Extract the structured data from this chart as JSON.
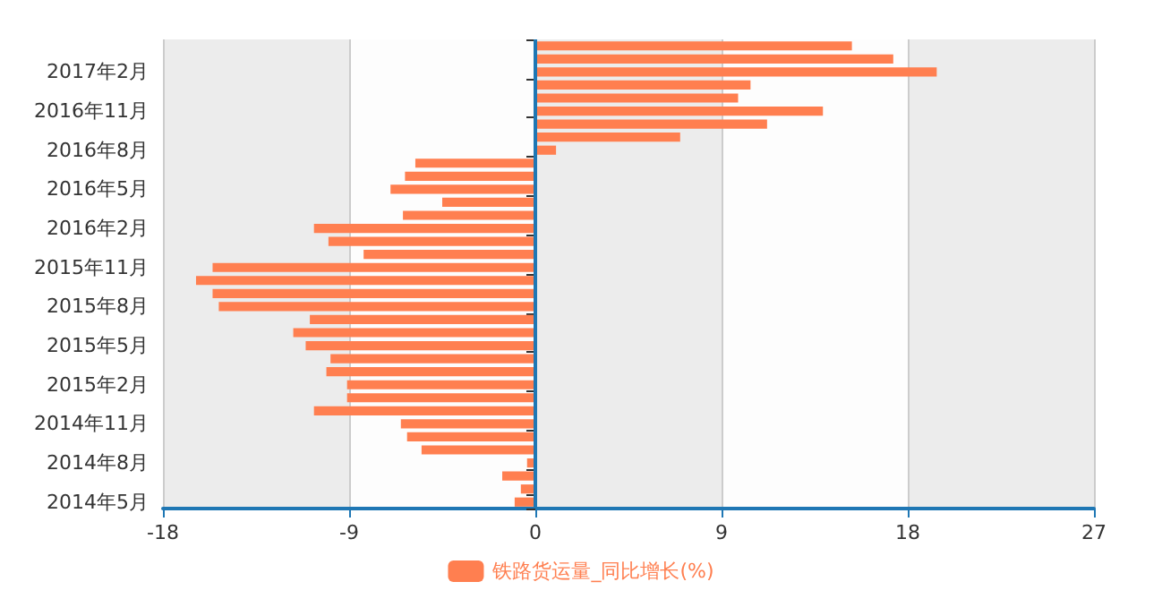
{
  "chart_data": {
    "type": "bar",
    "orientation": "horizontal",
    "categories": [
      null,
      null,
      "2017年2月",
      null,
      null,
      "2016年11月",
      null,
      null,
      "2016年8月",
      null,
      null,
      "2016年5月",
      null,
      null,
      "2016年2月",
      null,
      null,
      "2015年11月",
      null,
      null,
      "2015年8月",
      null,
      null,
      "2015年5月",
      null,
      null,
      "2015年2月",
      null,
      null,
      "2014年11月",
      null,
      null,
      "2014年8月",
      null,
      null,
      "2014年5月"
    ],
    "series": [
      {
        "name": "铁路货运量_同比增长(%)",
        "color": "#ff7f50",
        "values": [
          15.3,
          17.3,
          19.4,
          10.4,
          9.8,
          13.9,
          11.2,
          7.0,
          1.0,
          -5.8,
          -6.3,
          -7.0,
          -4.5,
          -6.4,
          -10.7,
          -10.0,
          -8.3,
          -15.6,
          -16.4,
          -15.6,
          -15.3,
          -10.9,
          -11.7,
          -11.1,
          -9.9,
          -10.1,
          -9.1,
          -9.1,
          -10.7,
          -6.5,
          -6.2,
          -5.5,
          -0.4,
          -1.6,
          -0.7,
          -1.0
        ]
      }
    ],
    "xlim": [
      -18,
      27
    ],
    "xticks": [
      -18,
      -9,
      0,
      9,
      18,
      27
    ],
    "grid": true,
    "legend": "bottom",
    "ref_lines": [
      {
        "axis": "x",
        "value": 0,
        "color": "#1f77b4"
      }
    ]
  }
}
